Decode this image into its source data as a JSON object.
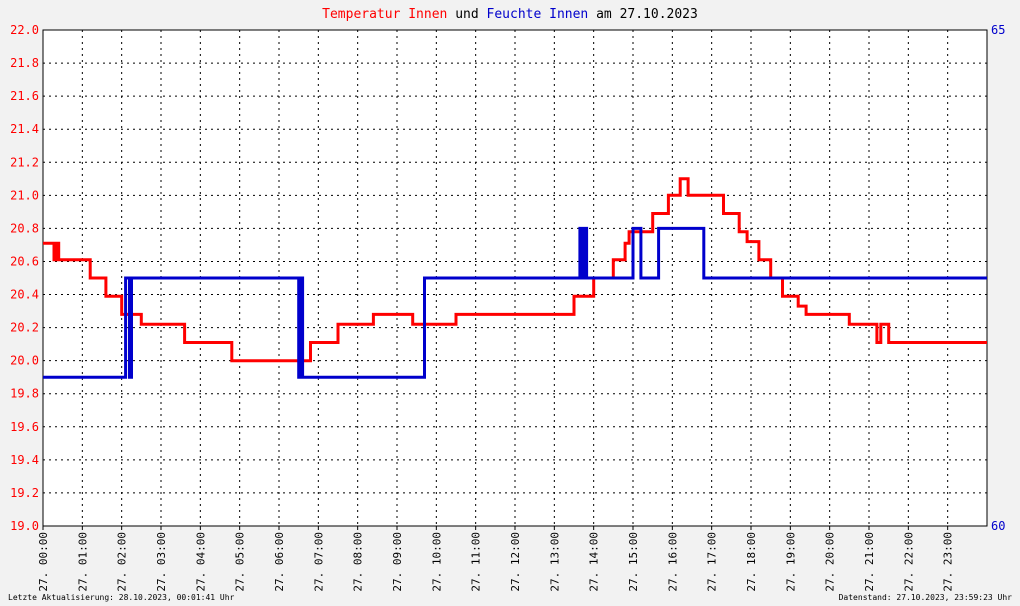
{
  "title_parts": [
    {
      "text": "Temperatur Innen",
      "color": "#ff0000"
    },
    {
      "text": " und ",
      "color": "#000000"
    },
    {
      "text": "Feuchte Innen",
      "color": "#0000cc"
    },
    {
      "text": " am 27.10.2023",
      "color": "#000000"
    }
  ],
  "footer": {
    "left": "Letzte Aktualisierung: 28.10.2023, 00:01:41 Uhr",
    "right": "Datenstand: 27.10.2023, 23:59:23 Uhr"
  },
  "chart_data": {
    "type": "line",
    "x_unit": "hour",
    "xlim": [
      0,
      24
    ],
    "x_tick_labels": [
      "27. 00:00",
      "27. 01:00",
      "27. 02:00",
      "27. 03:00",
      "27. 04:00",
      "27. 05:00",
      "27. 06:00",
      "27. 07:00",
      "27. 08:00",
      "27. 09:00",
      "27. 10:00",
      "27. 11:00",
      "27. 12:00",
      "27. 13:00",
      "27. 14:00",
      "27. 15:00",
      "27. 16:00",
      "27. 17:00",
      "27. 18:00",
      "27. 19:00",
      "27. 20:00",
      "27. 21:00",
      "27. 22:00",
      "27. 23:00"
    ],
    "y_left": {
      "lim": [
        19.0,
        22.0
      ],
      "ticks": [
        "19.0",
        "19.2",
        "19.4",
        "19.6",
        "19.8",
        "20.0",
        "20.2",
        "20.4",
        "20.6",
        "20.8",
        "21.0",
        "21.2",
        "21.4",
        "21.6",
        "21.8",
        "22.0"
      ],
      "color": "#ff0000"
    },
    "y_right": {
      "lim": [
        60,
        65
      ],
      "ticks": [
        "60",
        "65"
      ],
      "color": "#0000cc"
    },
    "grid": true,
    "series": [
      {
        "name": "Temperatur Innen",
        "axis": "left",
        "color": "#ff0000",
        "x": [
          0,
          0.25,
          0.28,
          0.35,
          0.4,
          0.5,
          0.58,
          1.2,
          1.6,
          2.0,
          2.5,
          3.5,
          3.6,
          4.5,
          4.8,
          6.5,
          6.8,
          7.3,
          7.5,
          8.2,
          8.4,
          9.0,
          9.4,
          10.5,
          12.0,
          13.3,
          13.5,
          13.8,
          14.0,
          14.3,
          14.5,
          14.8,
          14.9,
          15.3,
          15.5,
          15.9,
          16.0,
          16.2,
          16.4,
          16.8,
          17.0,
          17.3,
          17.7,
          17.9,
          18.2,
          18.5,
          18.8,
          19.0,
          19.2,
          19.4,
          19.5,
          20.0,
          20.5,
          20.8,
          21.0,
          21.2,
          21.3,
          21.5,
          21.8,
          22.0,
          22.5,
          23.0,
          24.0
        ],
        "y": [
          20.71,
          20.71,
          20.61,
          20.71,
          20.61,
          20.61,
          20.61,
          20.5,
          20.39,
          20.28,
          20.22,
          20.22,
          20.11,
          20.11,
          20.0,
          20.0,
          20.11,
          20.11,
          20.22,
          20.22,
          20.28,
          20.28,
          20.22,
          20.28,
          20.28,
          20.28,
          20.39,
          20.39,
          20.5,
          20.5,
          20.61,
          20.71,
          20.78,
          20.78,
          20.89,
          21.0,
          21.0,
          21.1,
          21.0,
          21.0,
          21.0,
          20.89,
          20.78,
          20.72,
          20.61,
          20.5,
          20.39,
          20.39,
          20.33,
          20.28,
          20.28,
          20.28,
          20.22,
          20.22,
          20.22,
          20.11,
          20.22,
          20.11,
          20.11,
          20.11,
          20.11,
          20.11,
          20.11
        ]
      },
      {
        "name": "Feuchte Innen",
        "axis": "right",
        "color": "#0000cc",
        "x": [
          0,
          2.1,
          2.1,
          2.2,
          2.2,
          2.25,
          2.25,
          6.5,
          6.5,
          6.55,
          6.55,
          6.6,
          6.6,
          9.7,
          9.7,
          13.65,
          13.65,
          13.72,
          13.72,
          13.75,
          13.75,
          13.82,
          13.82,
          13.9,
          13.9,
          15.0,
          15.0,
          15.2,
          15.2,
          15.3,
          15.3,
          15.65,
          15.65,
          16.8,
          16.8,
          24.0
        ],
        "y": [
          61.5,
          61.5,
          62.5,
          62.5,
          61.5,
          61.5,
          62.5,
          62.5,
          61.5,
          61.5,
          62.5,
          62.5,
          61.5,
          61.5,
          62.5,
          62.5,
          63.0,
          63.0,
          62.5,
          62.5,
          63.0,
          63.0,
          62.5,
          62.5,
          62.5,
          62.5,
          63.0,
          63.0,
          62.5,
          62.5,
          62.5,
          62.5,
          63.0,
          63.0,
          62.5,
          62.5
        ]
      }
    ]
  }
}
